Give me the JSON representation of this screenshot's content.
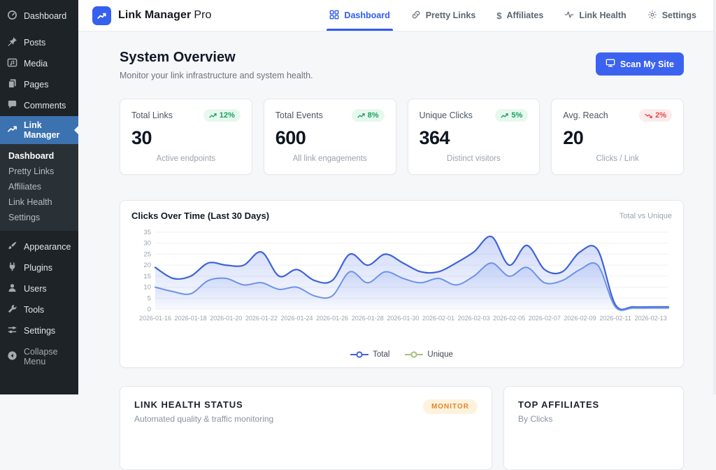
{
  "theme": {
    "accent_blue": "#3b63f0",
    "wp_active_blue": "#3b72af",
    "sidebar_bg": "#1d2327",
    "green": "#17a35c",
    "red": "#ef4444",
    "orange": "#e0862c"
  },
  "sidebar": {
    "items_top": [
      {
        "label": "Dashboard",
        "icon": "gauge-icon"
      }
    ],
    "items_main": [
      {
        "label": "Posts",
        "icon": "pin-icon"
      },
      {
        "label": "Media",
        "icon": "media-icon"
      },
      {
        "label": "Pages",
        "icon": "pages-icon"
      },
      {
        "label": "Comments",
        "icon": "comment-icon"
      },
      {
        "label": "Link Manager",
        "icon": "trending-up-icon",
        "active": true
      }
    ],
    "submenu": [
      "Dashboard",
      "Pretty Links",
      "Affiliates",
      "Link Health",
      "Settings"
    ],
    "submenu_active": "Dashboard",
    "items_bottom": [
      {
        "label": "Appearance",
        "icon": "brush-icon"
      },
      {
        "label": "Plugins",
        "icon": "plug-icon"
      },
      {
        "label": "Users",
        "icon": "user-icon"
      },
      {
        "label": "Tools",
        "icon": "wrench-icon"
      },
      {
        "label": "Settings",
        "icon": "sliders-icon"
      }
    ],
    "collapse": {
      "label": "Collapse Menu",
      "icon": "collapse-arrow-icon"
    }
  },
  "header": {
    "brand_name": "Link Manager",
    "brand_suffix": "Pro",
    "tabs": [
      {
        "label": "Dashboard",
        "icon": "grid-icon",
        "active": true
      },
      {
        "label": "Pretty Links",
        "icon": "link-icon"
      },
      {
        "label": "Affiliates",
        "icon": "dollar-icon"
      },
      {
        "label": "Link Health",
        "icon": "activity-icon"
      },
      {
        "label": "Settings",
        "icon": "gear-icon"
      }
    ]
  },
  "overview": {
    "title": "System Overview",
    "subtitle": "Monitor your link infrastructure and system health.",
    "scan_button": "Scan My Site"
  },
  "stats": [
    {
      "label": "Total Links",
      "badge": "12%",
      "trend": "up",
      "value": "30",
      "sub": "Active endpoints"
    },
    {
      "label": "Total Events",
      "badge": "8%",
      "trend": "up",
      "value": "600",
      "sub": "All link engagements"
    },
    {
      "label": "Unique Clicks",
      "badge": "5%",
      "trend": "up",
      "value": "364",
      "sub": "Distinct visitors"
    },
    {
      "label": "Avg. Reach",
      "badge": "2%",
      "trend": "down",
      "value": "20",
      "sub": "Clicks / Link"
    }
  ],
  "chart_card": {
    "title": "Clicks Over Time (Last 30 Days)",
    "note": "Total vs Unique"
  },
  "chart_data": {
    "type": "area",
    "title": "Clicks Over Time (Last 30 Days)",
    "x": [
      "2026-01-16",
      "2026-01-17",
      "2026-01-18",
      "2026-01-19",
      "2026-01-20",
      "2026-01-21",
      "2026-01-22",
      "2026-01-23",
      "2026-01-24",
      "2026-01-25",
      "2026-01-26",
      "2026-01-27",
      "2026-01-28",
      "2026-01-29",
      "2026-01-30",
      "2026-01-31",
      "2026-02-01",
      "2026-02-02",
      "2026-02-03",
      "2026-02-04",
      "2026-02-05",
      "2026-02-06",
      "2026-02-07",
      "2026-02-08",
      "2026-02-09",
      "2026-02-10",
      "2026-02-11",
      "2026-02-12",
      "2026-02-13",
      "2026-02-14"
    ],
    "x_label_step": 2,
    "series": [
      {
        "name": "Total",
        "color": "#3f63d8",
        "fill_color": "#5b7ceb",
        "legend_color": "#4163d8",
        "values": [
          19,
          14,
          15,
          21,
          20,
          20,
          26,
          15,
          18,
          13,
          13,
          25,
          20,
          25,
          21,
          17,
          17,
          21,
          26,
          33,
          20,
          29,
          18,
          17,
          26,
          27,
          2,
          1,
          1,
          1
        ]
      },
      {
        "name": "Unique",
        "color": "#6d93e8",
        "fill_color": "#82a0f0",
        "legend_color": "#a6c17e",
        "values": [
          10,
          8,
          7,
          13,
          14,
          11,
          12,
          9,
          10,
          6,
          6,
          17,
          12,
          17,
          14,
          12,
          14,
          11,
          15,
          21,
          15,
          19,
          12,
          13,
          18,
          20,
          1,
          0.5,
          0.5,
          0.5
        ]
      }
    ],
    "ylim": [
      0,
      35
    ],
    "ystep": 5,
    "grid": true,
    "legend_position": "bottom"
  },
  "health_card": {
    "title": "LINK HEALTH STATUS",
    "subtitle": "Automated quality & traffic monitoring",
    "badge": "MONITOR"
  },
  "affiliates_card": {
    "title": "TOP AFFILIATES",
    "subtitle": "By Clicks"
  }
}
